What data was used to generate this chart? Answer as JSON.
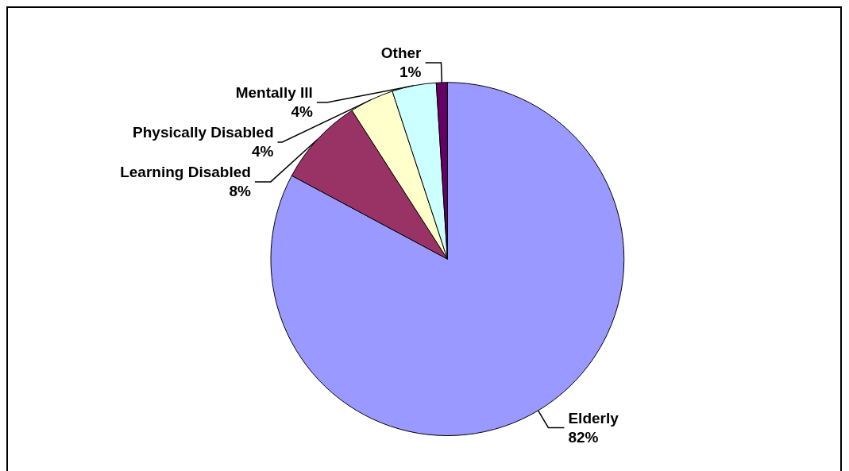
{
  "chart_data": {
    "type": "pie",
    "categories": [
      "Elderly",
      "Learning Disabled",
      "Physically Disabled",
      "Mentally Ill",
      "Other"
    ],
    "values": [
      82,
      8,
      4,
      4,
      1
    ],
    "value_labels": [
      "82%",
      "8%",
      "4%",
      "4%",
      "1%"
    ],
    "colors": [
      "#9999ff",
      "#993366",
      "#ffffcc",
      "#ccffff",
      "#660066"
    ],
    "legend": false
  }
}
